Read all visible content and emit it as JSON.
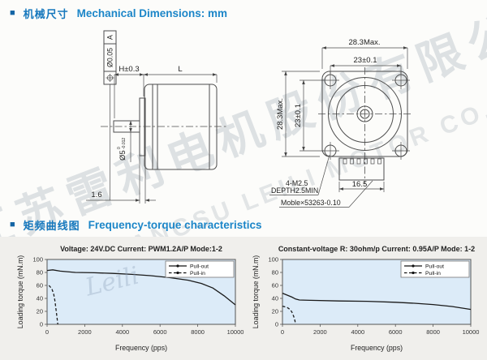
{
  "colors": {
    "accent_blue": "#1678bd",
    "plot_bg": "#dcebf8",
    "section_bg": "#f0efec",
    "drawing_line": "#4d4d4d",
    "curve": "#1a1a1a"
  },
  "watermark": {
    "cn": "江苏雷利电机股份有限公司",
    "en": "JIANGSU LEILI MOTOR CO., LTD.",
    "script": "Leili"
  },
  "sections": {
    "mech": {
      "bullet": "■",
      "cn": "机械尺寸",
      "en": "Mechanical Dimensions: mm"
    },
    "freq": {
      "bullet": "■",
      "cn": "矩频曲线图",
      "en": "Frequency-torque characteristics"
    }
  },
  "drawing": {
    "fcf": {
      "symbol": "position",
      "tolerance": "Ø0.05",
      "datum": "A"
    },
    "side": {
      "dim_h": "H±0.3",
      "dim_l": "L",
      "shaft_dia": "Ø5",
      "shaft_tol_upper": "0",
      "shaft_tol_lower": "-0.012",
      "dim_flange_thickness": "1.6"
    },
    "front": {
      "dim_width_max": "28.3Max.",
      "dim_hole_span_h": "23±0.1",
      "dim_height_max": "28.3Max.",
      "dim_hole_span_v": "23±0.1",
      "screw_note_line1": "4-M2.5",
      "screw_note_line2": "DEPTH2.5MIN",
      "dim_connector": "16.5",
      "connector_note": "Moble×53263-0.10"
    }
  },
  "chart_data": [
    {
      "type": "line",
      "title": "Voltage: 24V.DC Current: PWM1.2A/P Mode:1-2",
      "xlabel": "Frequency (pps)",
      "ylabel": "Loading torque (mN.m)",
      "xlim": [
        0,
        10000
      ],
      "ylim": [
        0,
        100
      ],
      "xticks": [
        0,
        2000,
        4000,
        6000,
        8000,
        10000
      ],
      "yticks": [
        0,
        20,
        40,
        60,
        80,
        100
      ],
      "legend_position": "top-right",
      "grid": false,
      "series": [
        {
          "name": "Pull-out",
          "style": "solid",
          "points": [
            [
              0,
              83
            ],
            [
              300,
              84
            ],
            [
              700,
              82
            ],
            [
              1500,
              80
            ],
            [
              2500,
              79.5
            ],
            [
              3500,
              78.5
            ],
            [
              4500,
              77
            ],
            [
              5500,
              75
            ],
            [
              6500,
              72
            ],
            [
              7500,
              68
            ],
            [
              8200,
              63
            ],
            [
              8800,
              56
            ],
            [
              9400,
              44
            ],
            [
              10000,
              30
            ]
          ]
        },
        {
          "name": "Pull-in",
          "style": "dashed",
          "points": [
            [
              100,
              60
            ],
            [
              250,
              55
            ],
            [
              350,
              47
            ],
            [
              420,
              36
            ],
            [
              480,
              22
            ],
            [
              530,
              10
            ],
            [
              570,
              0
            ]
          ]
        }
      ]
    },
    {
      "type": "line",
      "title": "Constant-voltage R: 30ohm/p Current: 0.95A/P Mode: 1-2",
      "xlabel": "Frequency (pps)",
      "ylabel": "Loading torque (mN.m)",
      "xlim": [
        0,
        10000
      ],
      "ylim": [
        0,
        100
      ],
      "xticks": [
        0,
        2000,
        4000,
        6000,
        8000,
        10000
      ],
      "yticks": [
        0,
        20,
        40,
        60,
        80,
        100
      ],
      "legend_position": "top-right",
      "grid": false,
      "series": [
        {
          "name": "Pull-out",
          "style": "solid",
          "points": [
            [
              0,
              48
            ],
            [
              250,
              45
            ],
            [
              500,
              42
            ],
            [
              700,
              39
            ],
            [
              900,
              37.5
            ],
            [
              1500,
              37
            ],
            [
              3000,
              36
            ],
            [
              4500,
              35.5
            ],
            [
              6000,
              34
            ],
            [
              7000,
              32.5
            ],
            [
              8000,
              30.5
            ],
            [
              9000,
              27.5
            ],
            [
              10000,
              23
            ]
          ]
        },
        {
          "name": "Pull-in",
          "style": "dashed",
          "points": [
            [
              0,
              28
            ],
            [
              250,
              26
            ],
            [
              400,
              23
            ],
            [
              500,
              19
            ],
            [
              600,
              12
            ],
            [
              660,
              6
            ],
            [
              700,
              0
            ]
          ]
        }
      ]
    }
  ]
}
